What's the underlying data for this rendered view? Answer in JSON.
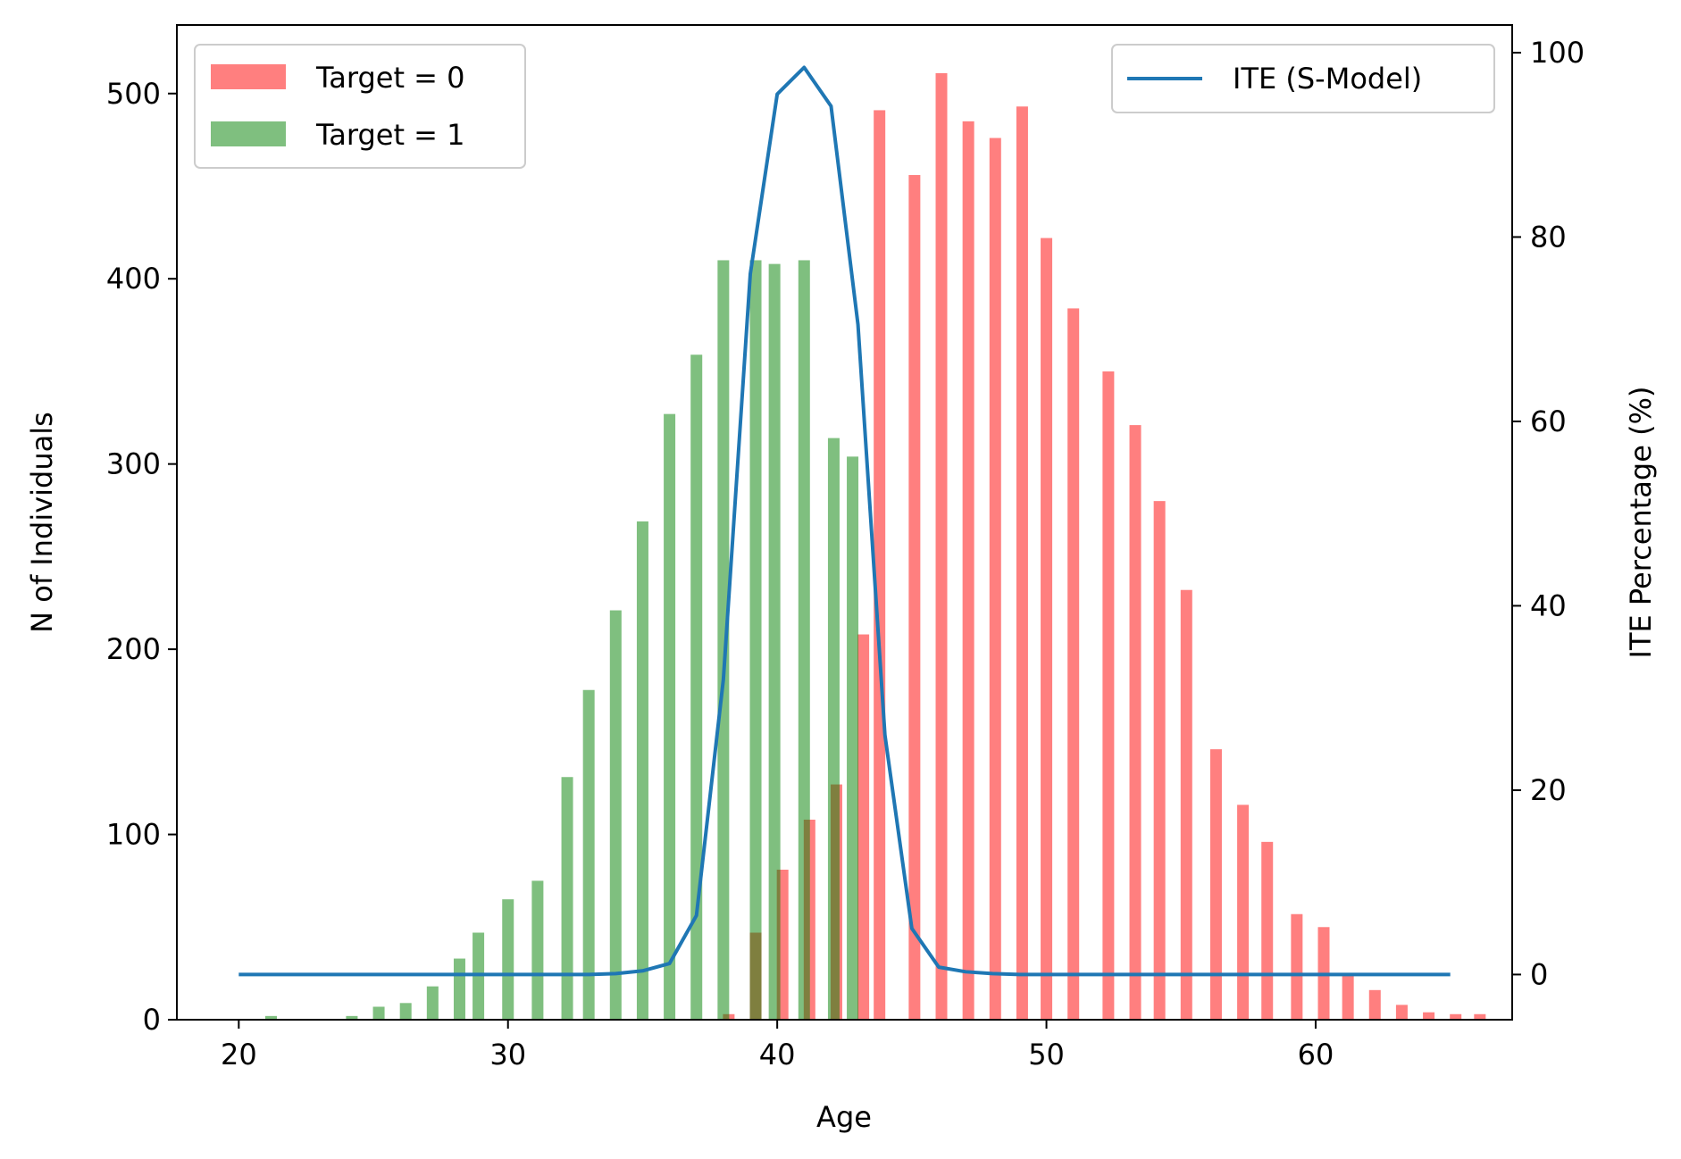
{
  "chart_data": {
    "type": "bar",
    "xlabel": "Age",
    "ylabel_left": "N of Individuals",
    "ylabel_right": "ITE Percentage (%)",
    "xlim": [
      17.7,
      67.3
    ],
    "ylim_left": [
      0,
      537
    ],
    "ylim_right": [
      -4.9,
      103
    ],
    "x_ticks": [
      20,
      30,
      40,
      50,
      60
    ],
    "y_left_ticks": [
      0,
      100,
      200,
      300,
      400,
      500
    ],
    "y_right_ticks": [
      0,
      20,
      40,
      60,
      80,
      100
    ],
    "grid": false,
    "legend_left_placement": "upper-left",
    "legend_right_placement": "upper-right",
    "series": [
      {
        "name": "Target = 0",
        "kind": "bar",
        "axis": "left",
        "color": "#ff0000",
        "opacity": 0.5,
        "x": [
          38.2,
          39.2,
          40.2,
          41.2,
          42.2,
          43.2,
          43.8,
          45.1,
          46.1,
          47.1,
          48.1,
          49.1,
          50.0,
          51.0,
          52.3,
          53.3,
          54.2,
          55.2,
          56.3,
          57.3,
          58.2,
          59.3,
          60.3,
          61.2,
          62.2,
          63.2,
          64.2,
          65.2,
          66.1
        ],
        "values": [
          3,
          47,
          81,
          108,
          127,
          208,
          491,
          456,
          511,
          485,
          476,
          493,
          422,
          384,
          350,
          321,
          280,
          232,
          146,
          116,
          96,
          57,
          50,
          25,
          16,
          8,
          4,
          3,
          3
        ]
      },
      {
        "name": "Target = 1",
        "kind": "bar",
        "axis": "left",
        "color": "#008000",
        "opacity": 0.5,
        "x": [
          21.2,
          24.2,
          25.2,
          26.2,
          27.2,
          28.2,
          28.9,
          30.0,
          31.1,
          32.2,
          33.0,
          34.0,
          35.0,
          36.0,
          37.0,
          38.0,
          39.2,
          39.9,
          41.0,
          42.1,
          42.8
        ],
        "values": [
          2,
          2,
          7,
          9,
          18,
          33,
          47,
          65,
          75,
          131,
          178,
          221,
          269,
          327,
          359,
          410,
          410,
          408,
          410,
          314,
          304
        ]
      },
      {
        "name": "ITE (S-Model)",
        "kind": "line",
        "axis": "right",
        "color": "#1f77b4",
        "x": [
          20,
          21,
          22,
          23,
          24,
          25,
          26,
          27,
          28,
          29,
          30,
          31,
          32,
          33,
          34,
          35,
          36,
          37,
          38,
          39,
          40,
          41,
          42,
          43,
          44,
          45,
          46,
          47,
          48,
          49,
          50,
          51,
          52,
          53,
          54,
          55,
          56,
          57,
          58,
          59,
          60,
          61,
          62,
          63,
          64,
          65
        ],
        "values": [
          0,
          0,
          0,
          0,
          0,
          0,
          0,
          0,
          0,
          0,
          0,
          0,
          0,
          0,
          0.1,
          0.4,
          1.2,
          6.4,
          32,
          76,
          95.5,
          98.4,
          94.2,
          70.5,
          26,
          5,
          0.8,
          0.3,
          0.1,
          0,
          0,
          0,
          0,
          0,
          0,
          0,
          0,
          0,
          0,
          0,
          0,
          0,
          0,
          0,
          0,
          0
        ]
      }
    ]
  }
}
